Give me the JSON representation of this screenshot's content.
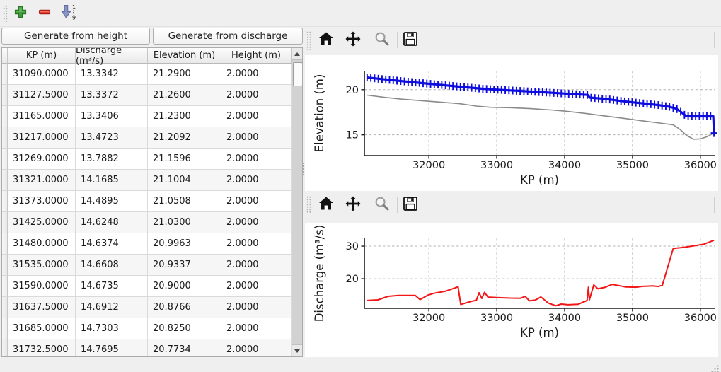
{
  "toolbar": {
    "add_label": "add row",
    "remove_label": "remove row",
    "sort_label": "sort ascending",
    "sort_icon_top_label": "1",
    "sort_icon_bottom_label": "9"
  },
  "buttons": {
    "generate_height": "Generate from height",
    "generate_discharge": "Generate from discharge"
  },
  "table": {
    "columns": [
      "KP (m)",
      "Discharge (m³/s)",
      "Elevation (m)",
      "Height (m)"
    ],
    "rows": [
      [
        "31090.0000",
        "13.3342",
        "21.2900",
        "2.0000"
      ],
      [
        "31127.5000",
        "13.3372",
        "21.2600",
        "2.0000"
      ],
      [
        "31165.0000",
        "13.3406",
        "21.2300",
        "2.0000"
      ],
      [
        "31217.0000",
        "13.4723",
        "21.2092",
        "2.0000"
      ],
      [
        "31269.0000",
        "13.7882",
        "21.1596",
        "2.0000"
      ],
      [
        "31321.0000",
        "14.1685",
        "21.1004",
        "2.0000"
      ],
      [
        "31373.0000",
        "14.4895",
        "21.0508",
        "2.0000"
      ],
      [
        "31425.0000",
        "14.6248",
        "21.0300",
        "2.0000"
      ],
      [
        "31480.0000",
        "14.6374",
        "20.9963",
        "2.0000"
      ],
      [
        "31535.0000",
        "14.6608",
        "20.9337",
        "2.0000"
      ],
      [
        "31590.0000",
        "14.6735",
        "20.9000",
        "2.0000"
      ],
      [
        "31637.5000",
        "14.6912",
        "20.8766",
        "2.0000"
      ],
      [
        "31685.0000",
        "14.7303",
        "20.8250",
        "2.0000"
      ],
      [
        "31732.5000",
        "14.7695",
        "20.7734",
        "2.0000"
      ]
    ]
  },
  "chart_toolbar_icons": [
    "home",
    "pan",
    "zoom",
    "save"
  ],
  "colors": {
    "elevation_line": "#0d0de0",
    "ground_line": "#8a8a8a",
    "discharge_line": "#f21616",
    "grid": "#b3b3b3",
    "spine": "#1a1a1a"
  },
  "chart_data": [
    {
      "type": "line",
      "xlabel": "KP (m)",
      "ylabel": "Elevation (m)",
      "xlim": [
        31050,
        36210
      ],
      "ylim": [
        12.7,
        22.1
      ],
      "xticks": [
        32000,
        33000,
        34000,
        35000,
        36000
      ],
      "yticks": [
        15,
        20
      ],
      "grid": true,
      "series": [
        {
          "name": "ground-profile",
          "color": "#8a8a8a",
          "width": 1.6,
          "points": [
            [
              31090,
              19.4
            ],
            [
              31350,
              19.15
            ],
            [
              31600,
              18.95
            ],
            [
              31900,
              18.78
            ],
            [
              32200,
              18.6
            ],
            [
              32450,
              18.45
            ],
            [
              32700,
              18.18
            ],
            [
              32900,
              18.05
            ],
            [
              33200,
              18.0
            ],
            [
              33500,
              17.9
            ],
            [
              33800,
              17.75
            ],
            [
              34000,
              17.63
            ],
            [
              34300,
              17.38
            ],
            [
              34600,
              17.08
            ],
            [
              34900,
              16.8
            ],
            [
              35150,
              16.55
            ],
            [
              35400,
              16.3
            ],
            [
              35600,
              16.1
            ],
            [
              35700,
              15.6
            ],
            [
              35800,
              14.9
            ],
            [
              35900,
              14.52
            ],
            [
              36000,
              14.55
            ],
            [
              36100,
              14.8
            ],
            [
              36200,
              15.2
            ]
          ]
        },
        {
          "name": "water-elevation",
          "color": "#0d0de0",
          "width": 3.2,
          "marker": "plus",
          "points": [
            [
              31090,
              21.35
            ],
            [
              31300,
              21.18
            ],
            [
              31600,
              20.95
            ],
            [
              31900,
              20.73
            ],
            [
              32200,
              20.52
            ],
            [
              32500,
              20.3
            ],
            [
              32800,
              20.1
            ],
            [
              33050,
              19.98
            ],
            [
              33300,
              19.88
            ],
            [
              33600,
              19.75
            ],
            [
              33900,
              19.62
            ],
            [
              34150,
              19.5
            ],
            [
              34340,
              19.42
            ],
            [
              34370,
              19.12
            ],
            [
              34600,
              18.98
            ],
            [
              34800,
              18.78
            ],
            [
              35000,
              18.6
            ],
            [
              35200,
              18.45
            ],
            [
              35400,
              18.28
            ],
            [
              35550,
              18.1
            ],
            [
              35650,
              17.88
            ],
            [
              35720,
              17.5
            ],
            [
              35780,
              17.12
            ],
            [
              35850,
              17.05
            ],
            [
              36190,
              17.05
            ],
            [
              36200,
              15.2
            ]
          ]
        }
      ]
    },
    {
      "type": "line",
      "xlabel": "KP (m)",
      "ylabel": "Discharge (m³/s)",
      "xlim": [
        31050,
        36210
      ],
      "ylim": [
        10.9,
        32.4
      ],
      "xticks": [
        32000,
        33000,
        34000,
        35000,
        36000
      ],
      "yticks": [
        20,
        30
      ],
      "grid": true,
      "series": [
        {
          "name": "discharge",
          "color": "#f21616",
          "width": 2,
          "points": [
            [
              31090,
              13.3
            ],
            [
              31250,
              13.5
            ],
            [
              31400,
              14.6
            ],
            [
              31550,
              14.85
            ],
            [
              31800,
              14.85
            ],
            [
              31870,
              13.6
            ],
            [
              31980,
              14.9
            ],
            [
              32070,
              15.5
            ],
            [
              32250,
              16.2
            ],
            [
              32430,
              17.5
            ],
            [
              32470,
              12.1
            ],
            [
              32600,
              12.9
            ],
            [
              32700,
              13.4
            ],
            [
              32740,
              15.7
            ],
            [
              32780,
              13.95
            ],
            [
              32820,
              15.8
            ],
            [
              32870,
              14.35
            ],
            [
              33000,
              14.2
            ],
            [
              33200,
              14.05
            ],
            [
              33350,
              14.0
            ],
            [
              33420,
              14.6
            ],
            [
              33480,
              13.2
            ],
            [
              33570,
              13.45
            ],
            [
              33650,
              14.4
            ],
            [
              33760,
              12.5
            ],
            [
              33870,
              11.7
            ],
            [
              33950,
              12.2
            ],
            [
              34050,
              12.0
            ],
            [
              34200,
              12.15
            ],
            [
              34330,
              13.3
            ],
            [
              34350,
              17.4
            ],
            [
              34365,
              13.5
            ],
            [
              34430,
              18.1
            ],
            [
              34490,
              16.9
            ],
            [
              34600,
              17.4
            ],
            [
              34700,
              18.25
            ],
            [
              34800,
              17.9
            ],
            [
              34900,
              17.45
            ],
            [
              35050,
              17.4
            ],
            [
              35150,
              17.65
            ],
            [
              35300,
              17.8
            ],
            [
              35380,
              17.6
            ],
            [
              35440,
              18.0
            ],
            [
              35600,
              29.3
            ],
            [
              35750,
              29.6
            ],
            [
              35900,
              30.1
            ],
            [
              36050,
              30.6
            ],
            [
              36200,
              31.8
            ]
          ]
        }
      ]
    }
  ]
}
